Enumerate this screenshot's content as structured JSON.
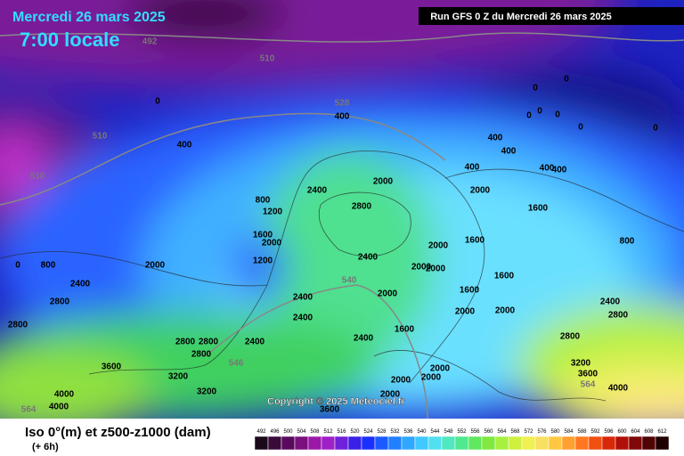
{
  "header": {
    "date": "Mercredi 26 mars 2025",
    "time": "7:00 locale",
    "run": "Run GFS 0 Z du Mercredi 26 mars 2025"
  },
  "footer": {
    "title": "Iso 0°(m) et z500-z1000 (dam)",
    "step": "(+ 6h)",
    "copyright": "Copyright © 2025 Meteociel.fr"
  },
  "colorbar": {
    "labels": [
      "492",
      "496",
      "500",
      "504",
      "508",
      "512",
      "516",
      "520",
      "524",
      "528",
      "532",
      "536",
      "540",
      "544",
      "548",
      "552",
      "556",
      "560",
      "564",
      "568",
      "572",
      "576",
      "580",
      "584",
      "588",
      "592",
      "596",
      "600",
      "604",
      "608",
      "612"
    ],
    "colors": [
      "#1a0a1a",
      "#3a0a3a",
      "#5a0a5e",
      "#7a107e",
      "#9a18a8",
      "#a020c8",
      "#7020d8",
      "#3a20e8",
      "#1a30ff",
      "#1a5aff",
      "#2080ff",
      "#30a8ff",
      "#40c8ff",
      "#50e0f0",
      "#50e8c0",
      "#50e890",
      "#60e860",
      "#80e840",
      "#a8f040",
      "#d0f040",
      "#f0f050",
      "#f8e060",
      "#ffc840",
      "#ffa030",
      "#ff7820",
      "#f05010",
      "#d82808",
      "#b01008",
      "#800808",
      "#500404",
      "#200000"
    ]
  },
  "map": {
    "labels": [
      "492",
      "510",
      "510",
      "510",
      "528",
      "400",
      "0",
      "400",
      "0",
      "0",
      "0",
      "0",
      "0",
      "0",
      "0",
      "400",
      "400",
      "400",
      "400",
      "400",
      "2000",
      "2400",
      "2000",
      "2800",
      "800",
      "1200",
      "1600",
      "1600",
      "2000",
      "1200",
      "800",
      "1600",
      "2000",
      "2000",
      "2400",
      "2000",
      "2400",
      "2800",
      "2000",
      "1600",
      "2000",
      "2400",
      "1600",
      "2000",
      "2000",
      "2400",
      "2800",
      "2400",
      "1600",
      "2400",
      "2800",
      "2800",
      "2800",
      "2400",
      "2800",
      "3600",
      "3200",
      "3200",
      "3600",
      "2000",
      "2000",
      "2000",
      "2000",
      "4000",
      "4000",
      "4000",
      "3200",
      "3600",
      "564",
      "564",
      "540",
      "546",
      "2800",
      "0",
      "800"
    ]
  }
}
